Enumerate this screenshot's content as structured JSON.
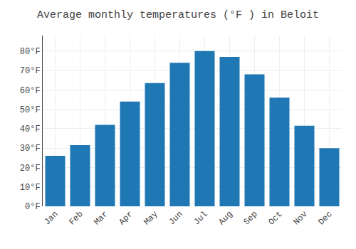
{
  "chart_data": {
    "type": "bar",
    "title": "Average monthly temperatures (°F ) in Beloit",
    "categories": [
      "Jan",
      "Feb",
      "Mar",
      "Apr",
      "May",
      "Jun",
      "Jul",
      "Aug",
      "Sep",
      "Oct",
      "Nov",
      "Dec"
    ],
    "values": [
      26,
      31.5,
      42,
      54,
      63.5,
      74,
      80,
      77,
      68,
      56,
      41.5,
      30
    ],
    "ylim": [
      0,
      88
    ],
    "yticks": [
      {
        "value": 0,
        "label": "0°F"
      },
      {
        "value": 10,
        "label": "10°F"
      },
      {
        "value": 20,
        "label": "20°F"
      },
      {
        "value": 30,
        "label": "30°F"
      },
      {
        "value": 40,
        "label": "40°F"
      },
      {
        "value": 50,
        "label": "50°F"
      },
      {
        "value": 60,
        "label": "60°F"
      },
      {
        "value": 70,
        "label": "70°F"
      },
      {
        "value": 80,
        "label": "80°F"
      }
    ],
    "grid": true
  }
}
